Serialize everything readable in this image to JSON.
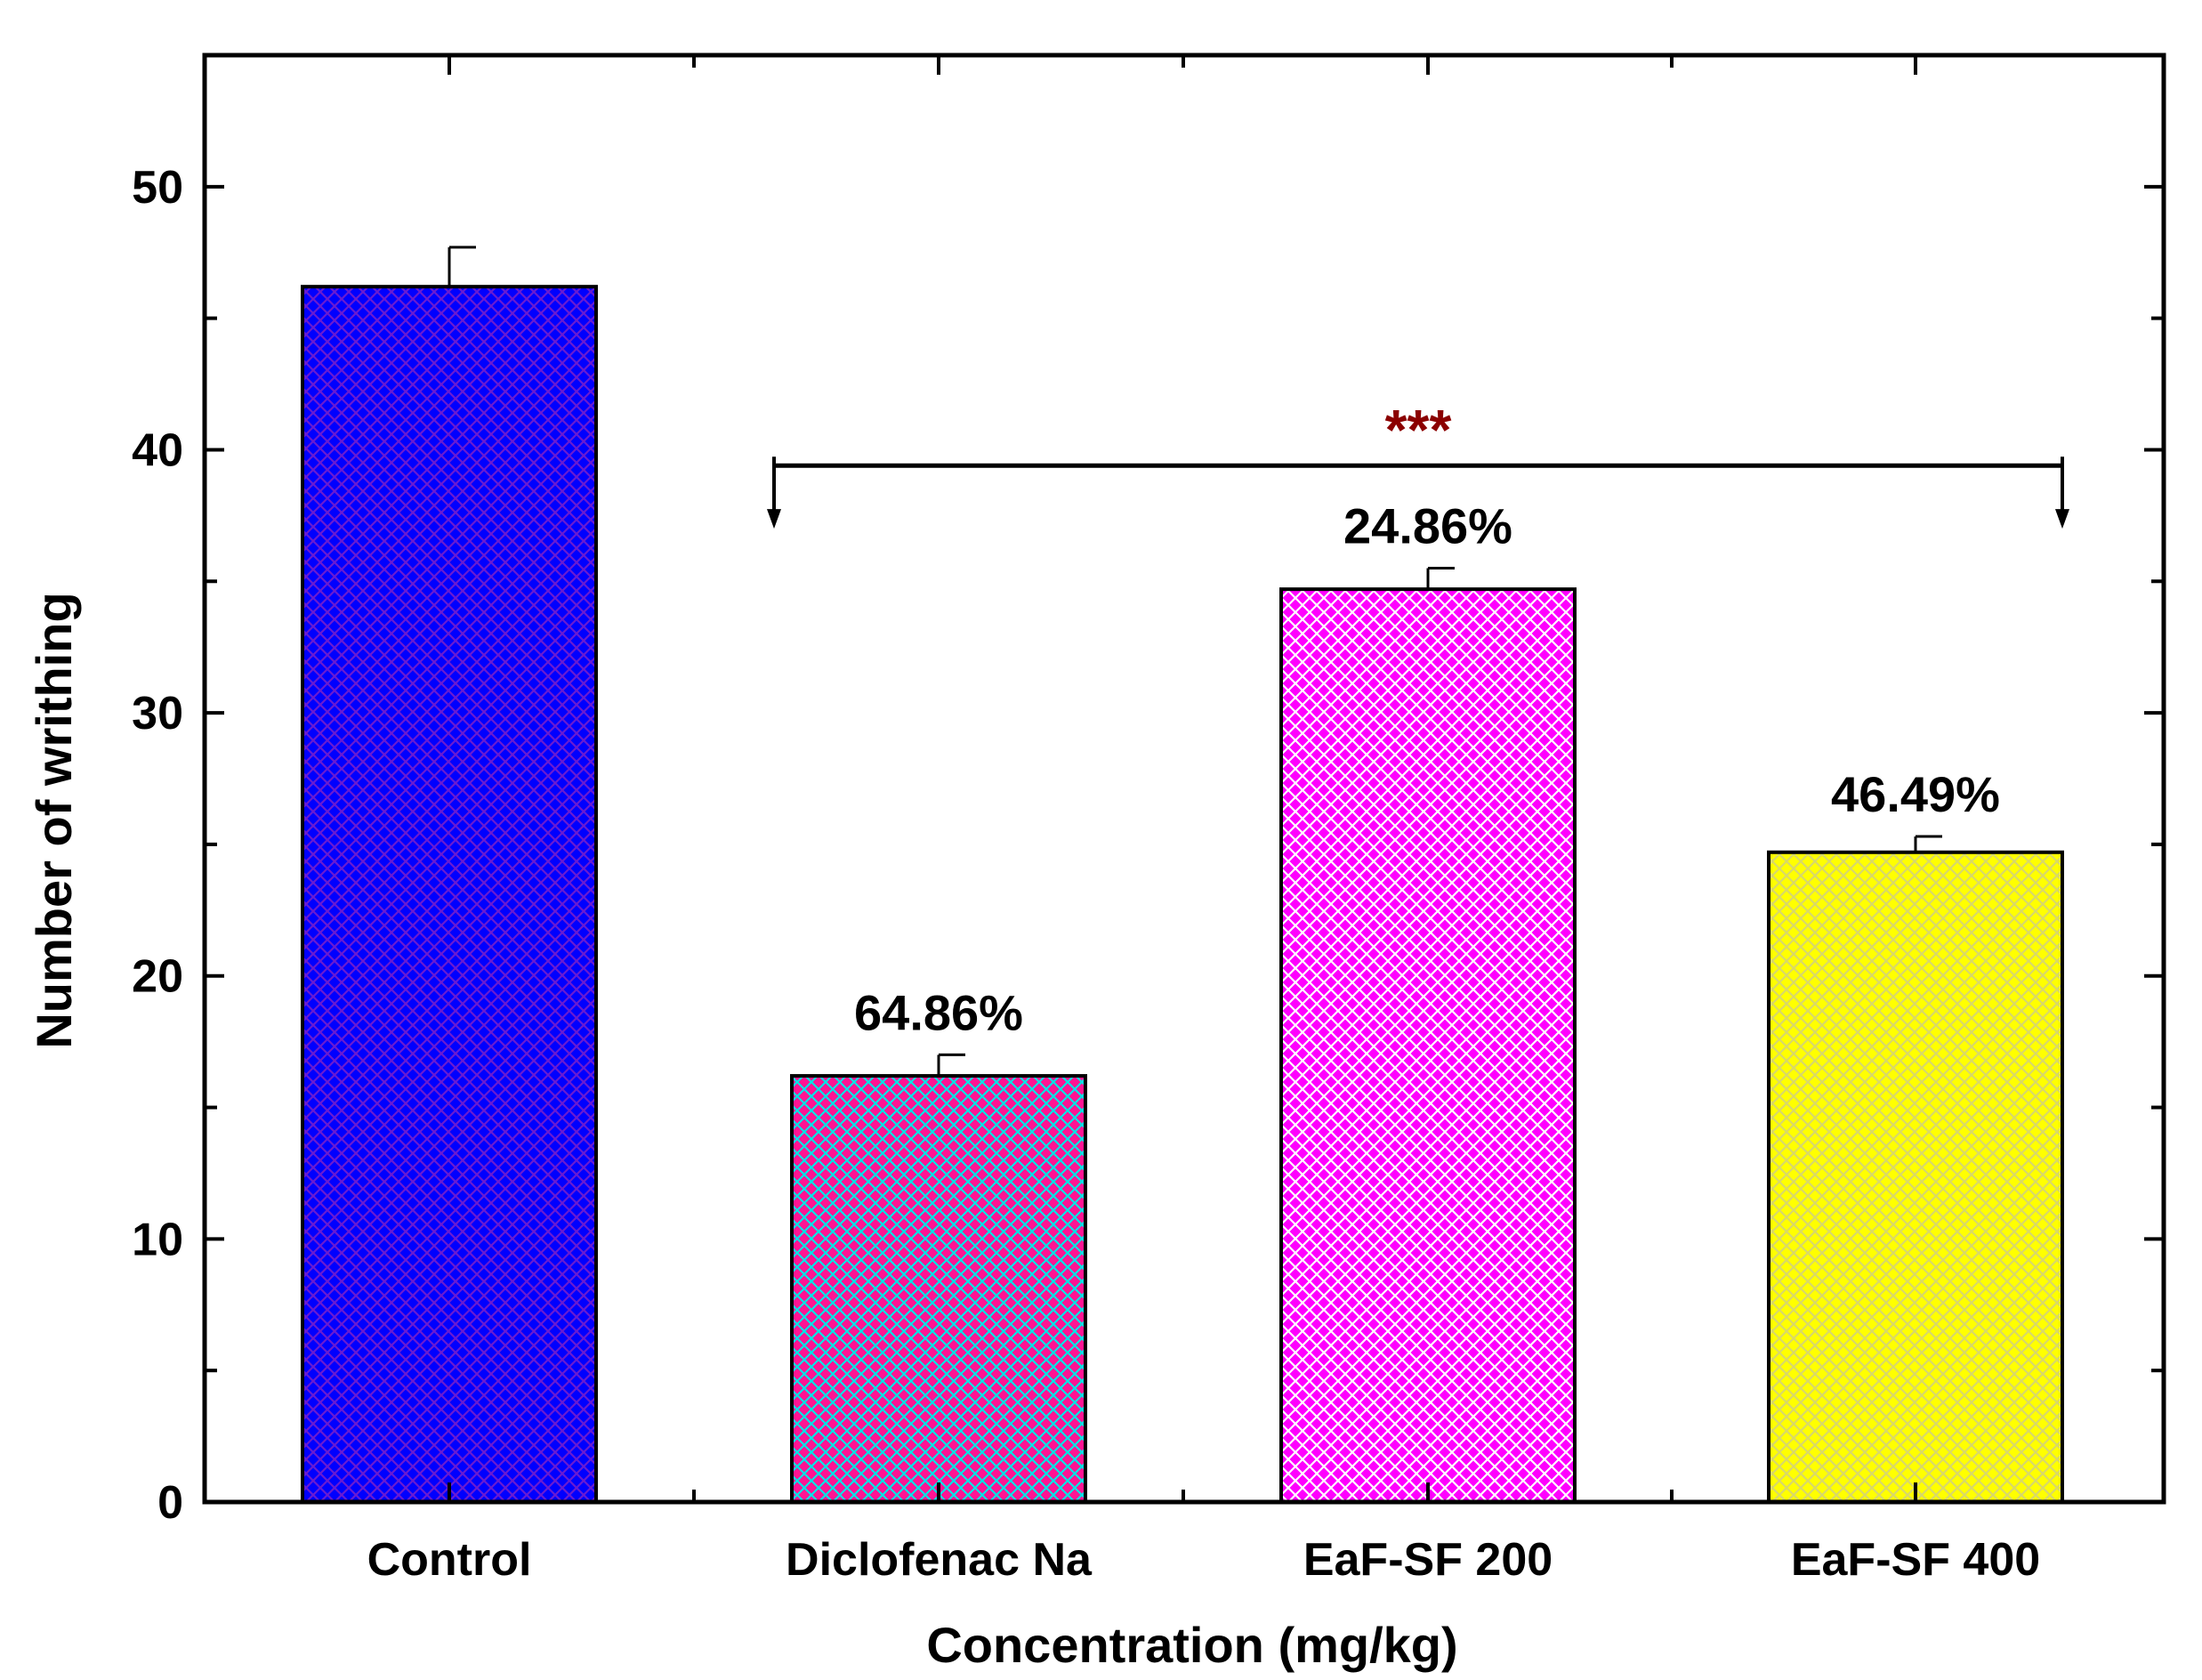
{
  "chart_data": {
    "type": "bar",
    "title": "",
    "xlabel": "Concentration (mg/kg)",
    "ylabel": "Number of writhing",
    "ylim": [
      0,
      55
    ],
    "yticks": [
      0,
      10,
      20,
      30,
      40,
      50
    ],
    "categories": [
      "Control",
      "Diclofenac Na",
      "EaF-SF 200",
      "EaF-SF 400"
    ],
    "values": [
      46.2,
      16.2,
      34.7,
      24.7
    ],
    "errors": [
      1.5,
      0.8,
      0.8,
      0.6
    ],
    "data_labels": [
      "",
      "64.86%",
      "24.86%",
      "46.49%"
    ],
    "colors": [
      "#0000ff",
      "#ff1493",
      "#ff00ff",
      "#ffff00"
    ],
    "pattern_colors": [
      "#6a1bd1",
      "#00e5e5",
      "#ffffff",
      "#d8d86a"
    ],
    "significance": {
      "label": "***",
      "from_category": 1,
      "to_category": 3,
      "level": 39.4,
      "arrow_to": 37.0
    }
  }
}
